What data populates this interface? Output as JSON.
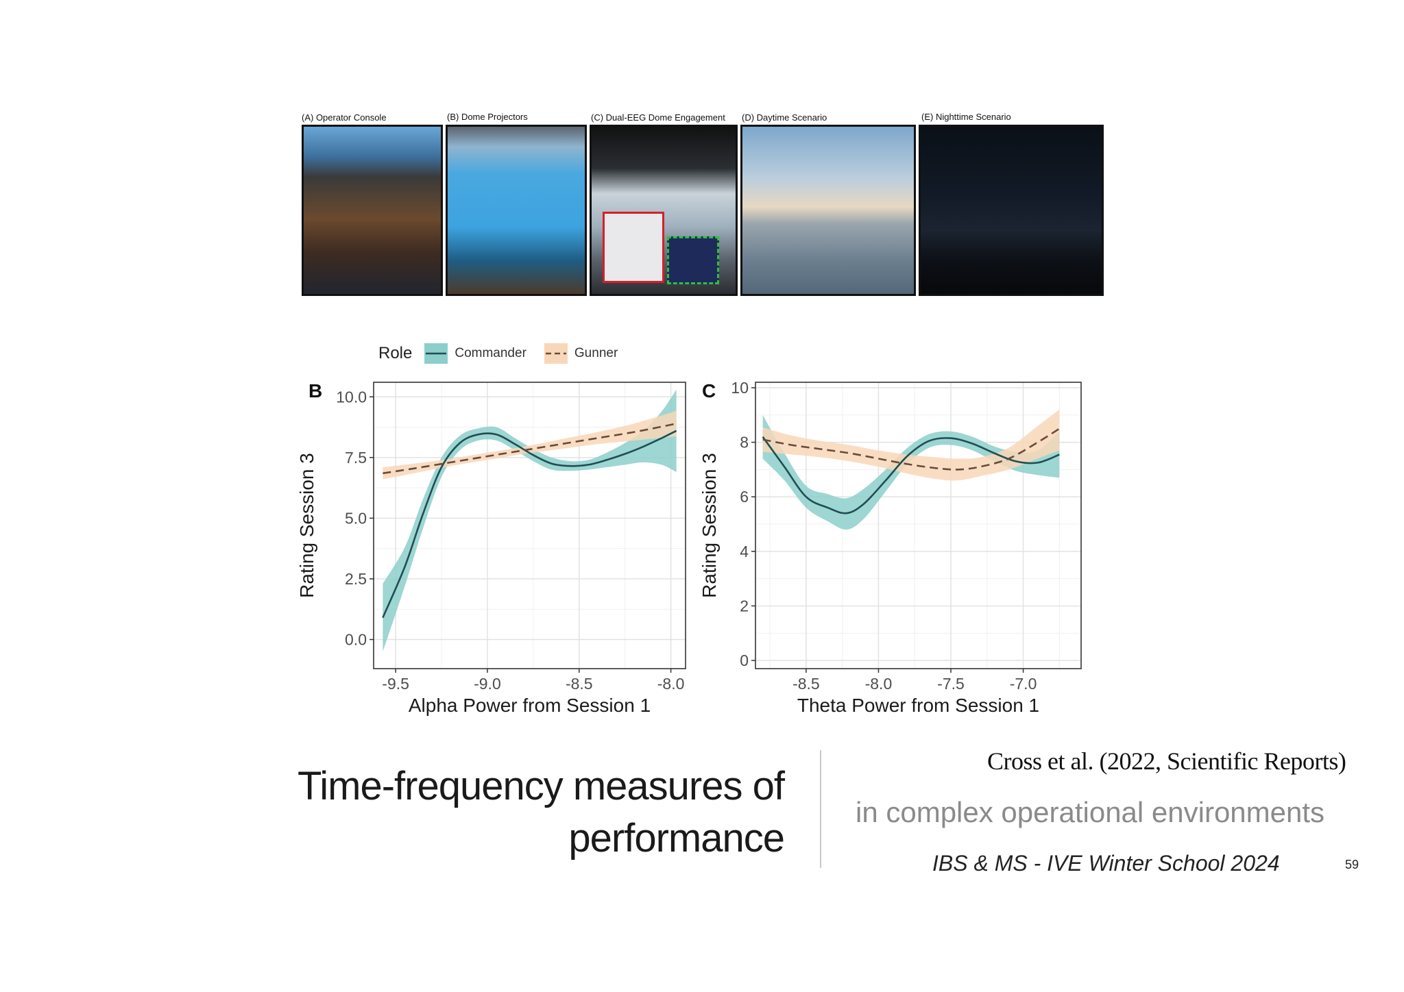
{
  "photo_panels": [
    {
      "label": "(A) Operator Console"
    },
    {
      "label": "(B) Dome Projectors"
    },
    {
      "label": "(C) Dual-EEG Dome Engagement"
    },
    {
      "label": "(D) Daytime Scenario"
    },
    {
      "label": "(E) Nighttime Scenario"
    }
  ],
  "legend": {
    "title": "Role",
    "items": [
      {
        "label": "Commander",
        "color": "#1f4e52",
        "band": "#8ccfca",
        "style": "solid"
      },
      {
        "label": "Gunner",
        "color": "#6b4a3a",
        "band": "#f8d7b9",
        "style": "dashed"
      }
    ]
  },
  "chart_data": [
    {
      "type": "line",
      "panel": "B",
      "xlabel": "Alpha Power from Session 1",
      "ylabel": "Rating Session 3",
      "xlim": [
        -9.62,
        -7.92
      ],
      "ylim": [
        -1.2,
        10.6
      ],
      "xticks": [
        -9.5,
        -9.0,
        -8.5,
        -8.0
      ],
      "xtick_labels": [
        "-9.5",
        "-9.0",
        "-8.5",
        "-8.0"
      ],
      "yticks": [
        0,
        2.5,
        5,
        7.5,
        10
      ],
      "ytick_labels": [
        "0.0",
        "2.5",
        "5.0",
        "7.5",
        "10.0"
      ],
      "grid": true,
      "series": [
        {
          "name": "Commander",
          "x": [
            -9.57,
            -9.45,
            -9.35,
            -9.25,
            -9.15,
            -9.05,
            -8.95,
            -8.85,
            -8.75,
            -8.65,
            -8.55,
            -8.45,
            -8.35,
            -8.25,
            -8.15,
            -8.05,
            -7.97
          ],
          "y": [
            0.9,
            3.0,
            5.2,
            7.1,
            8.1,
            8.45,
            8.45,
            8.05,
            7.6,
            7.25,
            7.15,
            7.2,
            7.4,
            7.65,
            7.95,
            8.3,
            8.6
          ],
          "lower": [
            -0.5,
            2.2,
            4.6,
            6.7,
            7.8,
            8.2,
            8.2,
            7.8,
            7.35,
            7.0,
            6.95,
            7.0,
            7.1,
            7.2,
            7.3,
            7.2,
            6.9
          ],
          "upper": [
            2.3,
            3.8,
            5.8,
            7.5,
            8.4,
            8.7,
            8.75,
            8.3,
            7.85,
            7.5,
            7.35,
            7.4,
            7.7,
            8.1,
            8.6,
            9.4,
            10.3
          ]
        },
        {
          "name": "Gunner",
          "x": [
            -9.57,
            -9.4,
            -9.2,
            -9.0,
            -8.8,
            -8.6,
            -8.4,
            -8.2,
            -8.0,
            -7.97
          ],
          "y": [
            6.85,
            7.05,
            7.3,
            7.55,
            7.8,
            8.05,
            8.3,
            8.55,
            8.85,
            8.9
          ],
          "lower": [
            6.6,
            6.85,
            7.15,
            7.4,
            7.65,
            7.85,
            8.05,
            8.2,
            8.35,
            8.35
          ],
          "upper": [
            7.1,
            7.25,
            7.45,
            7.7,
            7.95,
            8.25,
            8.55,
            8.9,
            9.35,
            9.45
          ]
        }
      ]
    },
    {
      "type": "line",
      "panel": "C",
      "xlabel": "Theta Power from Session 1",
      "ylabel": "Rating Session 3",
      "xlim": [
        -8.85,
        -6.6
      ],
      "ylim": [
        -0.3,
        10.2
      ],
      "xticks": [
        -8.5,
        -8.0,
        -7.5,
        -7.0
      ],
      "xtick_labels": [
        "-8.5",
        "-8.0",
        "-7.5",
        "-7.0"
      ],
      "yticks": [
        0,
        2,
        4,
        6,
        8,
        10
      ],
      "ytick_labels": [
        "0",
        "2",
        "4",
        "6",
        "8",
        "10"
      ],
      "grid": true,
      "series": [
        {
          "name": "Commander",
          "x": [
            -8.8,
            -8.65,
            -8.5,
            -8.35,
            -8.22,
            -8.1,
            -7.95,
            -7.8,
            -7.65,
            -7.5,
            -7.35,
            -7.2,
            -7.05,
            -6.9,
            -6.75
          ],
          "y": [
            8.2,
            7.1,
            6.0,
            5.6,
            5.4,
            5.75,
            6.6,
            7.5,
            8.05,
            8.15,
            7.95,
            7.6,
            7.3,
            7.25,
            7.55
          ],
          "lower": [
            7.4,
            6.6,
            5.6,
            5.1,
            4.8,
            5.2,
            6.2,
            7.2,
            7.8,
            7.9,
            7.7,
            7.3,
            6.95,
            6.8,
            6.7
          ],
          "upper": [
            9.0,
            7.6,
            6.4,
            6.1,
            5.95,
            6.3,
            7.0,
            7.8,
            8.3,
            8.4,
            8.2,
            7.85,
            7.65,
            7.7,
            8.4
          ]
        },
        {
          "name": "Gunner",
          "x": [
            -8.8,
            -8.6,
            -8.4,
            -8.2,
            -8.0,
            -7.8,
            -7.6,
            -7.45,
            -7.3,
            -7.1,
            -6.9,
            -6.75
          ],
          "y": [
            8.1,
            7.9,
            7.75,
            7.6,
            7.4,
            7.2,
            7.05,
            7.0,
            7.1,
            7.4,
            8.0,
            8.5
          ],
          "lower": [
            7.65,
            7.55,
            7.45,
            7.3,
            7.1,
            6.85,
            6.65,
            6.6,
            6.75,
            7.0,
            7.4,
            7.7
          ],
          "upper": [
            8.55,
            8.25,
            8.05,
            7.9,
            7.7,
            7.55,
            7.45,
            7.4,
            7.45,
            7.8,
            8.6,
            9.2
          ]
        }
      ]
    }
  ],
  "slide": {
    "title_line1": "Time-frequency measures of",
    "title_line2": "performance",
    "citation": "Cross et al. (2022, Scientific Reports)",
    "subtitle": "in complex operational environments",
    "footer": "IBS & MS - IVE Winter School 2024",
    "page_number": "59"
  }
}
